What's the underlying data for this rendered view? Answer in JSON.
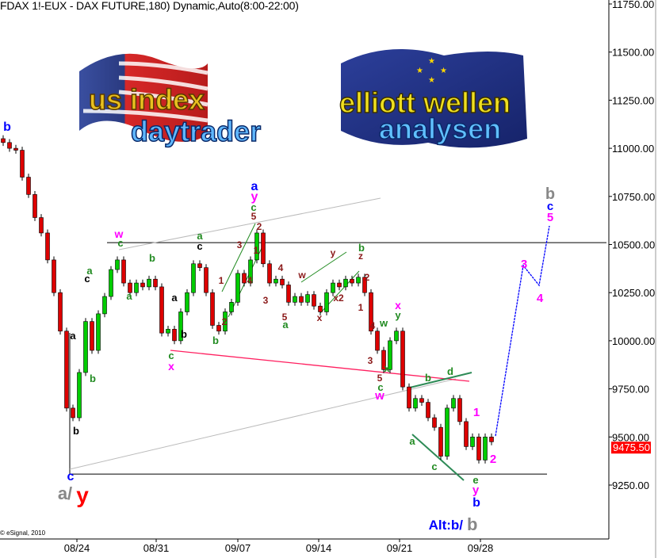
{
  "title": "FDAX 1!-EUX - DAX FUTURE,180) Dynamic,Auto(8:00-22:00)",
  "credit": "© eSignal, 2010",
  "logos": {
    "left": {
      "lines": [
        "us index",
        "daytrader"
      ]
    },
    "right": {
      "lines": [
        "elliott wellen",
        "analysen"
      ]
    }
  },
  "last_price": {
    "label": "9475.50",
    "value": 9475.5,
    "color": "#ff0000"
  },
  "colors": {
    "up": "#00cc00",
    "down": "#dd0000",
    "projection": "#0000ff",
    "maroon": "#8b1a1a",
    "green": "#228b22",
    "magenta": "#ff00ff",
    "blue": "#0000ff",
    "gray": "#888888",
    "red": "#ff0000",
    "black": "#000000",
    "pink_line": "#ff2060",
    "channel": "#2e8b57"
  },
  "chart_data": {
    "type": "candlestick",
    "title": "FDAX 1!-EUX - DAX FUTURE,180) Dynamic,Auto(8:00-22:00)",
    "ylim": [
      9000,
      11800
    ],
    "y_ticks": [
      "11750.00",
      "11500.00",
      "11250.00",
      "11000.00",
      "10750.00",
      "10500.00",
      "10250.00",
      "10000.00",
      "9750.00",
      "9500.00",
      "9250.00"
    ],
    "y_tick_values": [
      11750,
      11500,
      11250,
      11000,
      10750,
      10500,
      10250,
      10000,
      9750,
      9500,
      9250
    ],
    "x_ticks": [
      {
        "label": "08/24",
        "bar": 12
      },
      {
        "label": "08/31",
        "bar": 24
      },
      {
        "label": "09/07",
        "bar": 37
      },
      {
        "label": "09/14",
        "bar": 50
      },
      {
        "label": "09/21",
        "bar": 62
      },
      {
        "label": "09/28",
        "bar": 75
      }
    ],
    "grid": false,
    "closes": [
      11030,
      11000,
      10990,
      10850,
      10760,
      10640,
      10560,
      10420,
      10250,
      10050,
      9650,
      9600,
      9835,
      10100,
      9950,
      10140,
      10230,
      10370,
      10420,
      10300,
      10250,
      10300,
      10280,
      10320,
      10280,
      10040,
      10060,
      10000,
      10150,
      10250,
      10400,
      10380,
      10250,
      10080,
      10050,
      10150,
      10200,
      10350,
      10300,
      10420,
      10560,
      10400,
      10300,
      10320,
      10290,
      10200,
      10230,
      10200,
      10240,
      10180,
      10150,
      10250,
      10300,
      10280,
      10320,
      10300,
      10330,
      10250,
      10050,
      9950,
      9850,
      10000,
      10050,
      9760,
      9650,
      9700,
      9680,
      9600,
      9550,
      9400,
      9650,
      9700,
      9580,
      9450,
      9500,
      9380,
      9500,
      9475
    ],
    "projection": [
      9505,
      10391,
      10288,
      10597
    ],
    "levels": [
      10510,
      9307
    ],
    "annotations": [
      {
        "text": "b",
        "color": "blue"
      },
      {
        "text": "a",
        "color": "black"
      },
      {
        "text": "c",
        "color": "black"
      },
      {
        "text": "a",
        "color": "green"
      },
      {
        "text": "b",
        "color": "green"
      },
      {
        "text": "b",
        "color": "black"
      },
      {
        "text": "c",
        "color": "blue"
      },
      {
        "text": "a/",
        "color": "gray"
      },
      {
        "text": "y",
        "color": "red"
      },
      {
        "text": "w",
        "color": "magenta"
      },
      {
        "text": "c",
        "color": "green"
      },
      {
        "text": "b",
        "color": "green"
      },
      {
        "text": "a",
        "color": "green"
      },
      {
        "text": "a",
        "color": "black"
      },
      {
        "text": "b",
        "color": "black"
      },
      {
        "text": "c",
        "color": "green"
      },
      {
        "text": "x",
        "color": "magenta"
      },
      {
        "text": "a",
        "color": "green"
      },
      {
        "text": "c",
        "color": "black"
      },
      {
        "text": "b",
        "color": "green"
      },
      {
        "text": "1",
        "color": "maroon"
      },
      {
        "text": "2",
        "color": "maroon"
      },
      {
        "text": "3",
        "color": "maroon"
      },
      {
        "text": "4",
        "color": "maroon"
      },
      {
        "text": "5",
        "color": "maroon"
      },
      {
        "text": "c",
        "color": "green"
      },
      {
        "text": "y",
        "color": "magenta"
      },
      {
        "text": "a",
        "color": "blue"
      },
      {
        "text": "2",
        "color": "maroon"
      },
      {
        "text": "1",
        "color": "maroon"
      },
      {
        "text": "4",
        "color": "maroon"
      },
      {
        "text": "3",
        "color": "maroon"
      },
      {
        "text": "5",
        "color": "maroon"
      },
      {
        "text": "a",
        "color": "green"
      },
      {
        "text": "w",
        "color": "maroon"
      },
      {
        "text": "y",
        "color": "maroon"
      },
      {
        "text": "x",
        "color": "maroon"
      },
      {
        "text": "x2",
        "color": "maroon"
      },
      {
        "text": "b",
        "color": "green"
      },
      {
        "text": "z",
        "color": "maroon"
      },
      {
        "text": "2",
        "color": "maroon"
      },
      {
        "text": "1",
        "color": "maroon"
      },
      {
        "text": "4",
        "color": "maroon"
      },
      {
        "text": "3",
        "color": "maroon"
      },
      {
        "text": "x",
        "color": "magenta"
      },
      {
        "text": "y",
        "color": "green"
      },
      {
        "text": "w",
        "color": "green"
      },
      {
        "text": "x",
        "color": "green"
      },
      {
        "text": "5",
        "color": "maroon"
      },
      {
        "text": "c",
        "color": "green"
      },
      {
        "text": "w",
        "color": "magenta"
      },
      {
        "text": "b",
        "color": "green"
      },
      {
        "text": "d",
        "color": "green"
      },
      {
        "text": "a",
        "color": "green"
      },
      {
        "text": "c",
        "color": "green"
      },
      {
        "text": "1",
        "color": "magenta"
      },
      {
        "text": "2",
        "color": "magenta"
      },
      {
        "text": "e",
        "color": "green"
      },
      {
        "text": "y",
        "color": "magenta"
      },
      {
        "text": "b",
        "color": "blue"
      },
      {
        "text": "3",
        "color": "magenta"
      },
      {
        "text": "4",
        "color": "magenta"
      },
      {
        "text": "b",
        "color": "gray"
      },
      {
        "text": "c",
        "color": "blue"
      },
      {
        "text": "5",
        "color": "magenta"
      },
      {
        "text": "Alt:b/",
        "color": "blue"
      },
      {
        "text": "b",
        "color": "gray"
      }
    ]
  }
}
